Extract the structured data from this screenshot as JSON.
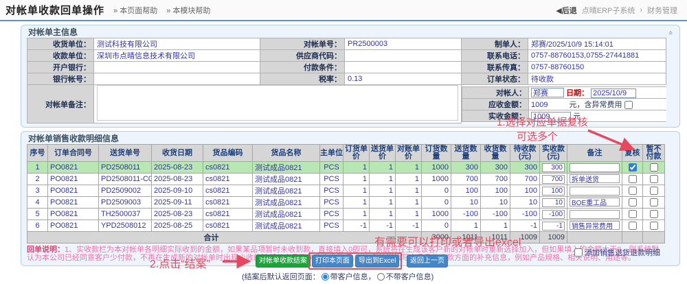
{
  "colors": {
    "accent_blue": "#5596cb",
    "panel_bg": "#edf4fb",
    "panel_border": "#b3d0e9",
    "label_bg": "#d6d6d6",
    "data_text": "#3434a0",
    "red_label": "#c40000",
    "magenta_status": "#cc33cc",
    "annotation_red": "#e8485e",
    "note_pink": "#f272ac",
    "green_button": "#1ea23c",
    "blue_button": "#4486c6",
    "row_highlight": "#b9e7b3"
  },
  "icons": {
    "back": "◀",
    "collapse": "«",
    "crumb_sep": "›"
  },
  "header": {
    "title": "对帐单收款回单操作",
    "help_page": "» 本页面帮助",
    "help_module": "» 本模块帮助",
    "back": "后退",
    "crumb_system": "点晴ERP子系统",
    "crumb_module": "财务管理"
  },
  "main_info": {
    "title": "对帐单主信息",
    "receiver_label": "收货单位：",
    "receiver_value": "测试科技有限公司",
    "statement_no_label": "对帐单号：",
    "statement_no_value": "PR2500003",
    "maker_label": "制单人：",
    "maker_value": "郑赛/2025/10/9 15:14:01",
    "payee_label": "收款单位：",
    "payee_value": "深圳市点晴信息技术有限公司",
    "supplier_code_label": "供应商代码：",
    "supplier_code_value": "",
    "phone_label": "联系电话：",
    "phone_value": "0757-88760153,0755-27441881",
    "bank_label": "开户银行：",
    "bank_value": "",
    "pay_terms_label": "付款条件：",
    "pay_terms_value": "",
    "fax_label": "联系传真：",
    "fax_value": "0757-88760150",
    "account_label": "银行帐号：",
    "account_value": "",
    "tax_label": "税率：",
    "tax_value": "0.13",
    "status_label": "订单状态：",
    "status_value": "待收款",
    "remark_label": "对帐单备注：",
    "remark_value": "",
    "checker_label": "对帐人：",
    "checker_value": "郑赛",
    "date_label": "日期：",
    "date_value": "2025/10/9",
    "receivable_label": "应收金额：",
    "receivable_value": "1009",
    "receivable_unit": "元，含异常费用",
    "received_label": "实收金额：",
    "received_value": "1009",
    "received_unit": "元"
  },
  "detail": {
    "title": "对帐单销售收款明细信息",
    "headers": [
      "序号",
      "订单合同号",
      "送货单号",
      "收货日期",
      "货品编码",
      "货品名称",
      "主单位",
      "订货单价",
      "送货单价",
      "对账单价",
      "订货数量",
      "送货数量",
      "收货数量",
      "待收款(元)",
      "实收款(元)",
      "备注",
      "复核",
      "暂不付款"
    ],
    "rows": [
      {
        "no": "1",
        "contract": "PO0821",
        "delivery": "PD2508011",
        "date": "2025-08-23",
        "code": "cs0821",
        "name": "测试成品0821",
        "unit": "PCS",
        "order_price": "1",
        "delivery_price": "1",
        "statement_price": "1",
        "order_qty": "1000",
        "delivery_qty": "300",
        "receive_qty": "300",
        "pending": "300",
        "received": "300",
        "remark": "",
        "review": true,
        "defer": false,
        "highlight": true
      },
      {
        "no": "2",
        "contract": "PO0821",
        "delivery": "PD2508011-C01",
        "date": "2025-08-23",
        "code": "cs0821",
        "name": "测试成品0821",
        "unit": "PCS",
        "order_price": "1",
        "delivery_price": "1",
        "statement_price": "1",
        "order_qty": "1000",
        "delivery_qty": "700",
        "receive_qty": "700",
        "pending": "700",
        "received": "700",
        "remark": "拆单送货",
        "review": false,
        "defer": false,
        "highlight": false
      },
      {
        "no": "3",
        "contract": "PO0821",
        "delivery": "PD2509002",
        "date": "2025-09-10",
        "code": "cs0821",
        "name": "测试成品0821",
        "unit": "PCS",
        "order_price": "1",
        "delivery_price": "1",
        "statement_price": "1",
        "order_qty": "0",
        "delivery_qty": "100",
        "receive_qty": "100",
        "pending": "100",
        "received": "100",
        "remark": "",
        "review": false,
        "defer": false,
        "highlight": false
      },
      {
        "no": "4",
        "contract": "PO0821",
        "delivery": "PD2509003",
        "date": "2025-09-11",
        "code": "cs0821",
        "name": "测试成品0821",
        "unit": "PCS",
        "order_price": "1",
        "delivery_price": "1",
        "statement_price": "1",
        "order_qty": "0",
        "delivery_qty": "10",
        "receive_qty": "10",
        "pending": "10",
        "received": "10",
        "remark": "BOE重工品",
        "review": false,
        "defer": false,
        "highlight": false
      },
      {
        "no": "5",
        "contract": "PO0821",
        "delivery": "TH2500037",
        "date": "2025-08-23",
        "code": "cs0821",
        "name": "测试成品0821",
        "unit": "PCS",
        "order_price": "1",
        "delivery_price": "1",
        "statement_price": "1",
        "order_qty": "1000",
        "delivery_qty": "-100",
        "receive_qty": "-100",
        "pending": "-100",
        "received": "-100",
        "remark": "",
        "review": false,
        "defer": false,
        "highlight": false
      },
      {
        "no": "6",
        "contract": "PO0821",
        "delivery": "YPD2508012",
        "date": "2025-08-25",
        "code": "cs0821",
        "name": "测试成品0821",
        "unit": "PCS",
        "order_price": "-1",
        "delivery_price": "-1",
        "statement_price": "-1",
        "order_qty": "0",
        "delivery_qty": "1",
        "receive_qty": "1",
        "pending": "-1",
        "received": "-1",
        "remark": "销售异常费用",
        "review": false,
        "defer": false,
        "highlight": false
      }
    ],
    "total_label": "合计",
    "totals": {
      "order_qty": "3000",
      "delivery_qty": "1011",
      "receive_qty": "1011",
      "pending": "1009",
      "received": "1009"
    },
    "note_label": "回单说明：",
    "note_text": "1、实收款栏为本对帐单各明细实际收到的金额，如果某品项暂时未收到款，直接填入0即可，系统将在生成该客户新的对帐单时重新选择加入，但如果填入的金额大于0，则系统默认为本公司已经同意客户少付款，不再在生成新的对帐单时出现少收的该部分产品及未收完之款项。2、备注栏填写产品具体收款方面的补充信息，例如产品规格、相关说明、用途等。"
  },
  "annotations": {
    "step1_line1": "1.选择对应单据复核",
    "step1_line2": "可选多个",
    "step2": "2.点击“结案”",
    "print_hint": "有需要可以打印或者导出excel"
  },
  "footer": {
    "settle_btn": "对帐单收款结案",
    "print_btn": "打印本页面",
    "export_btn": "导出到Excel",
    "back_btn": "返回上一页",
    "return_note_prefix": "(结案后默认返回页面：",
    "radio_with_info": "带客户信息，",
    "radio_without_info": "不带客户信息)",
    "add_refund_label": "添加销售退货退款明细"
  }
}
